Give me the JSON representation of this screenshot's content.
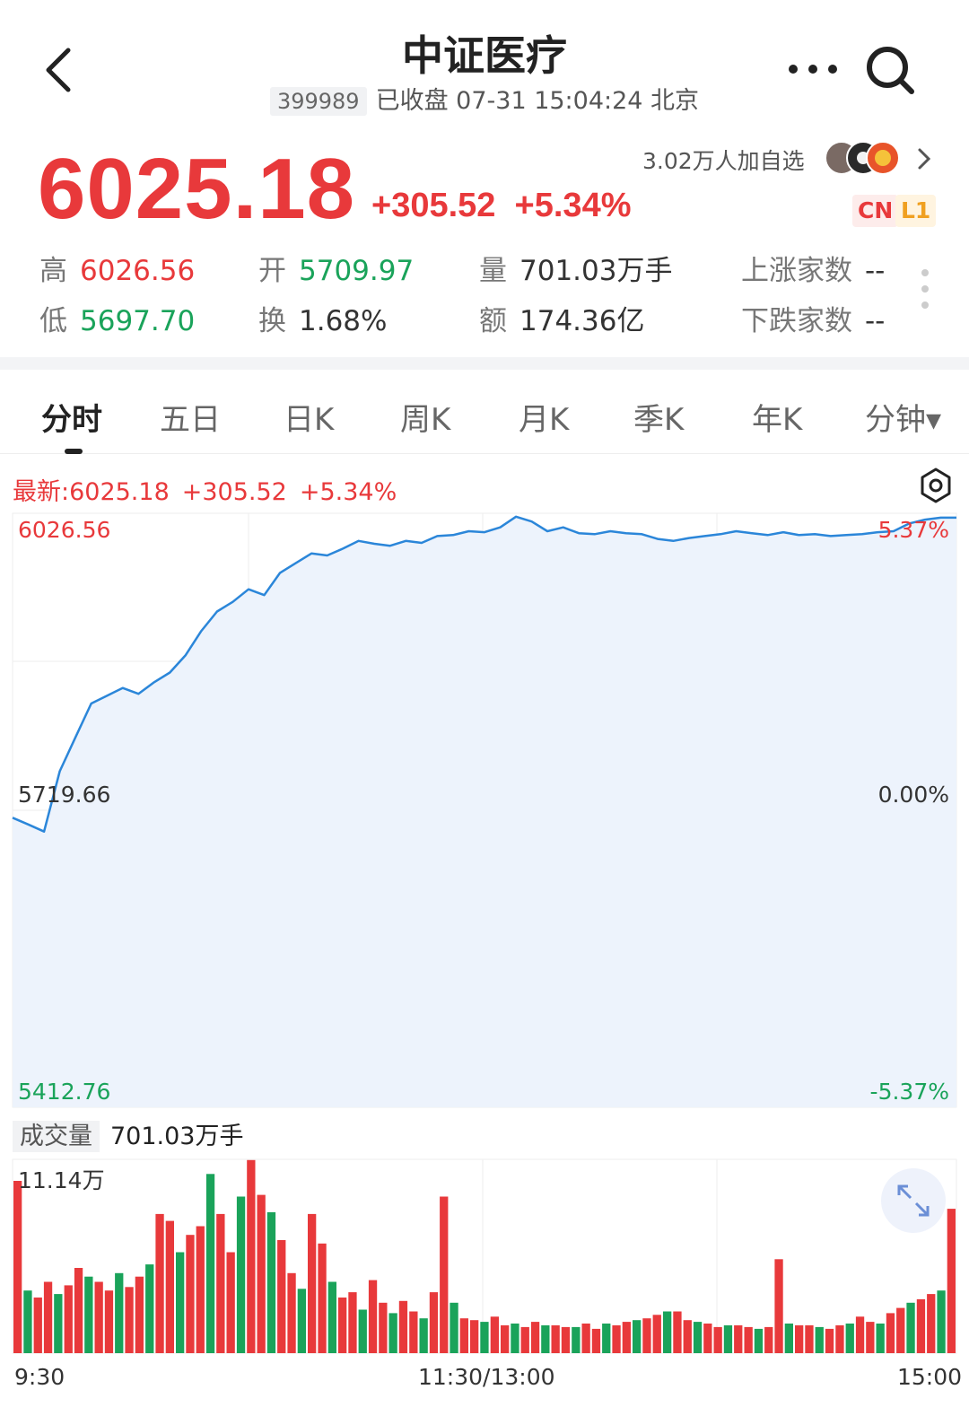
{
  "header": {
    "title": "中证医疗",
    "code": "399989",
    "status": "已收盘 07-31 15:04:24 北京"
  },
  "quote": {
    "price": "6025.18",
    "change": "+305.52",
    "change_pct": "+5.34%",
    "followers": "3.02万人加自选",
    "badge_cn": "CN",
    "badge_l1": "L1"
  },
  "stats": {
    "high_label": "高",
    "high_value": "6026.56",
    "open_label": "开",
    "open_value": "5709.97",
    "volume_label": "量",
    "volume_value": "701.03万手",
    "rise_label": "上涨家数",
    "rise_value": "--",
    "low_label": "低",
    "low_value": "5697.70",
    "turnover_label": "换",
    "turnover_value": "1.68%",
    "amount_label": "额",
    "amount_value": "174.36亿",
    "fall_label": "下跌家数",
    "fall_value": "--"
  },
  "tabs": [
    {
      "label": "分时",
      "active": true
    },
    {
      "label": "五日"
    },
    {
      "label": "日K"
    },
    {
      "label": "周K"
    },
    {
      "label": "月K"
    },
    {
      "label": "季K"
    },
    {
      "label": "年K"
    },
    {
      "label": "分钟▾"
    }
  ],
  "latest_bar": {
    "prefix": "最新:6025.18",
    "change": "+305.52",
    "change_pct": "+5.34%"
  },
  "volume_header": {
    "label": "成交量",
    "value": "701.03万手",
    "max_label": "11.14万"
  },
  "colors": {
    "up": "#e8393b",
    "down": "#1aa35a",
    "line": "#2b86d9",
    "fill": "#edf3fc"
  },
  "chart_data": {
    "type": "line",
    "y_left_labels": [
      "6026.56",
      "5719.66",
      "5412.76"
    ],
    "y_right_labels": [
      "5.37%",
      "0.00%",
      "-5.37%"
    ],
    "ylim": [
      5412.76,
      6026.56
    ],
    "base": 5719.66,
    "x_labels": [
      "9:30",
      "11:30/13:00",
      "15:00"
    ],
    "series": [
      {
        "values": [
          5712,
          5705,
          5697.7,
          5760,
          5795,
          5830,
          5838,
          5846,
          5840,
          5852,
          5862,
          5880,
          5905,
          5925,
          5935,
          5948,
          5942,
          5965,
          5975,
          5985,
          5983,
          5990,
          5998,
          5995,
          5993,
          5998,
          5996,
          6003,
          6004,
          6008,
          6007,
          6012,
          6023,
          6018,
          6008,
          6012,
          6006,
          6005,
          6008,
          6006,
          6005,
          6000,
          5998,
          6001,
          6003,
          6005,
          6008,
          6006,
          6004,
          6007,
          6004,
          6005,
          6003,
          6004,
          6005,
          6007,
          6008,
          6016,
          6020,
          6022,
          6022
        ]
      }
    ],
    "volume_values": [
      9.9,
      3.6,
      3.2,
      4.1,
      3.4,
      3.9,
      4.9,
      4.4,
      4.1,
      3.6,
      4.6,
      3.8,
      4.4,
      5.1,
      8.0,
      7.6,
      5.8,
      6.8,
      7.3,
      10.3,
      8.0,
      5.8,
      9.0,
      11.1,
      9.1,
      8.1,
      6.5,
      4.6,
      3.7,
      8.0,
      6.3,
      4.1,
      3.2,
      3.5,
      2.5,
      4.2,
      2.9,
      2.3,
      3.0,
      2.4,
      2.0,
      3.5,
      9.0,
      2.9,
      2.0,
      1.9,
      1.8,
      2.1,
      1.6,
      1.7,
      1.5,
      1.8,
      1.6,
      1.6,
      1.5,
      1.5,
      1.7,
      1.4,
      1.7,
      1.6,
      1.8,
      1.9,
      2.0,
      2.2,
      2.4,
      2.4,
      1.9,
      1.8,
      1.7,
      1.5,
      1.6,
      1.6,
      1.5,
      1.4,
      1.5,
      5.4,
      1.7,
      1.6,
      1.6,
      1.5,
      1.4,
      1.6,
      1.7,
      2.1,
      1.8,
      1.7,
      2.3,
      2.6,
      2.9,
      3.1,
      3.4,
      3.6,
      8.3
    ],
    "volume_max": 11.14
  }
}
